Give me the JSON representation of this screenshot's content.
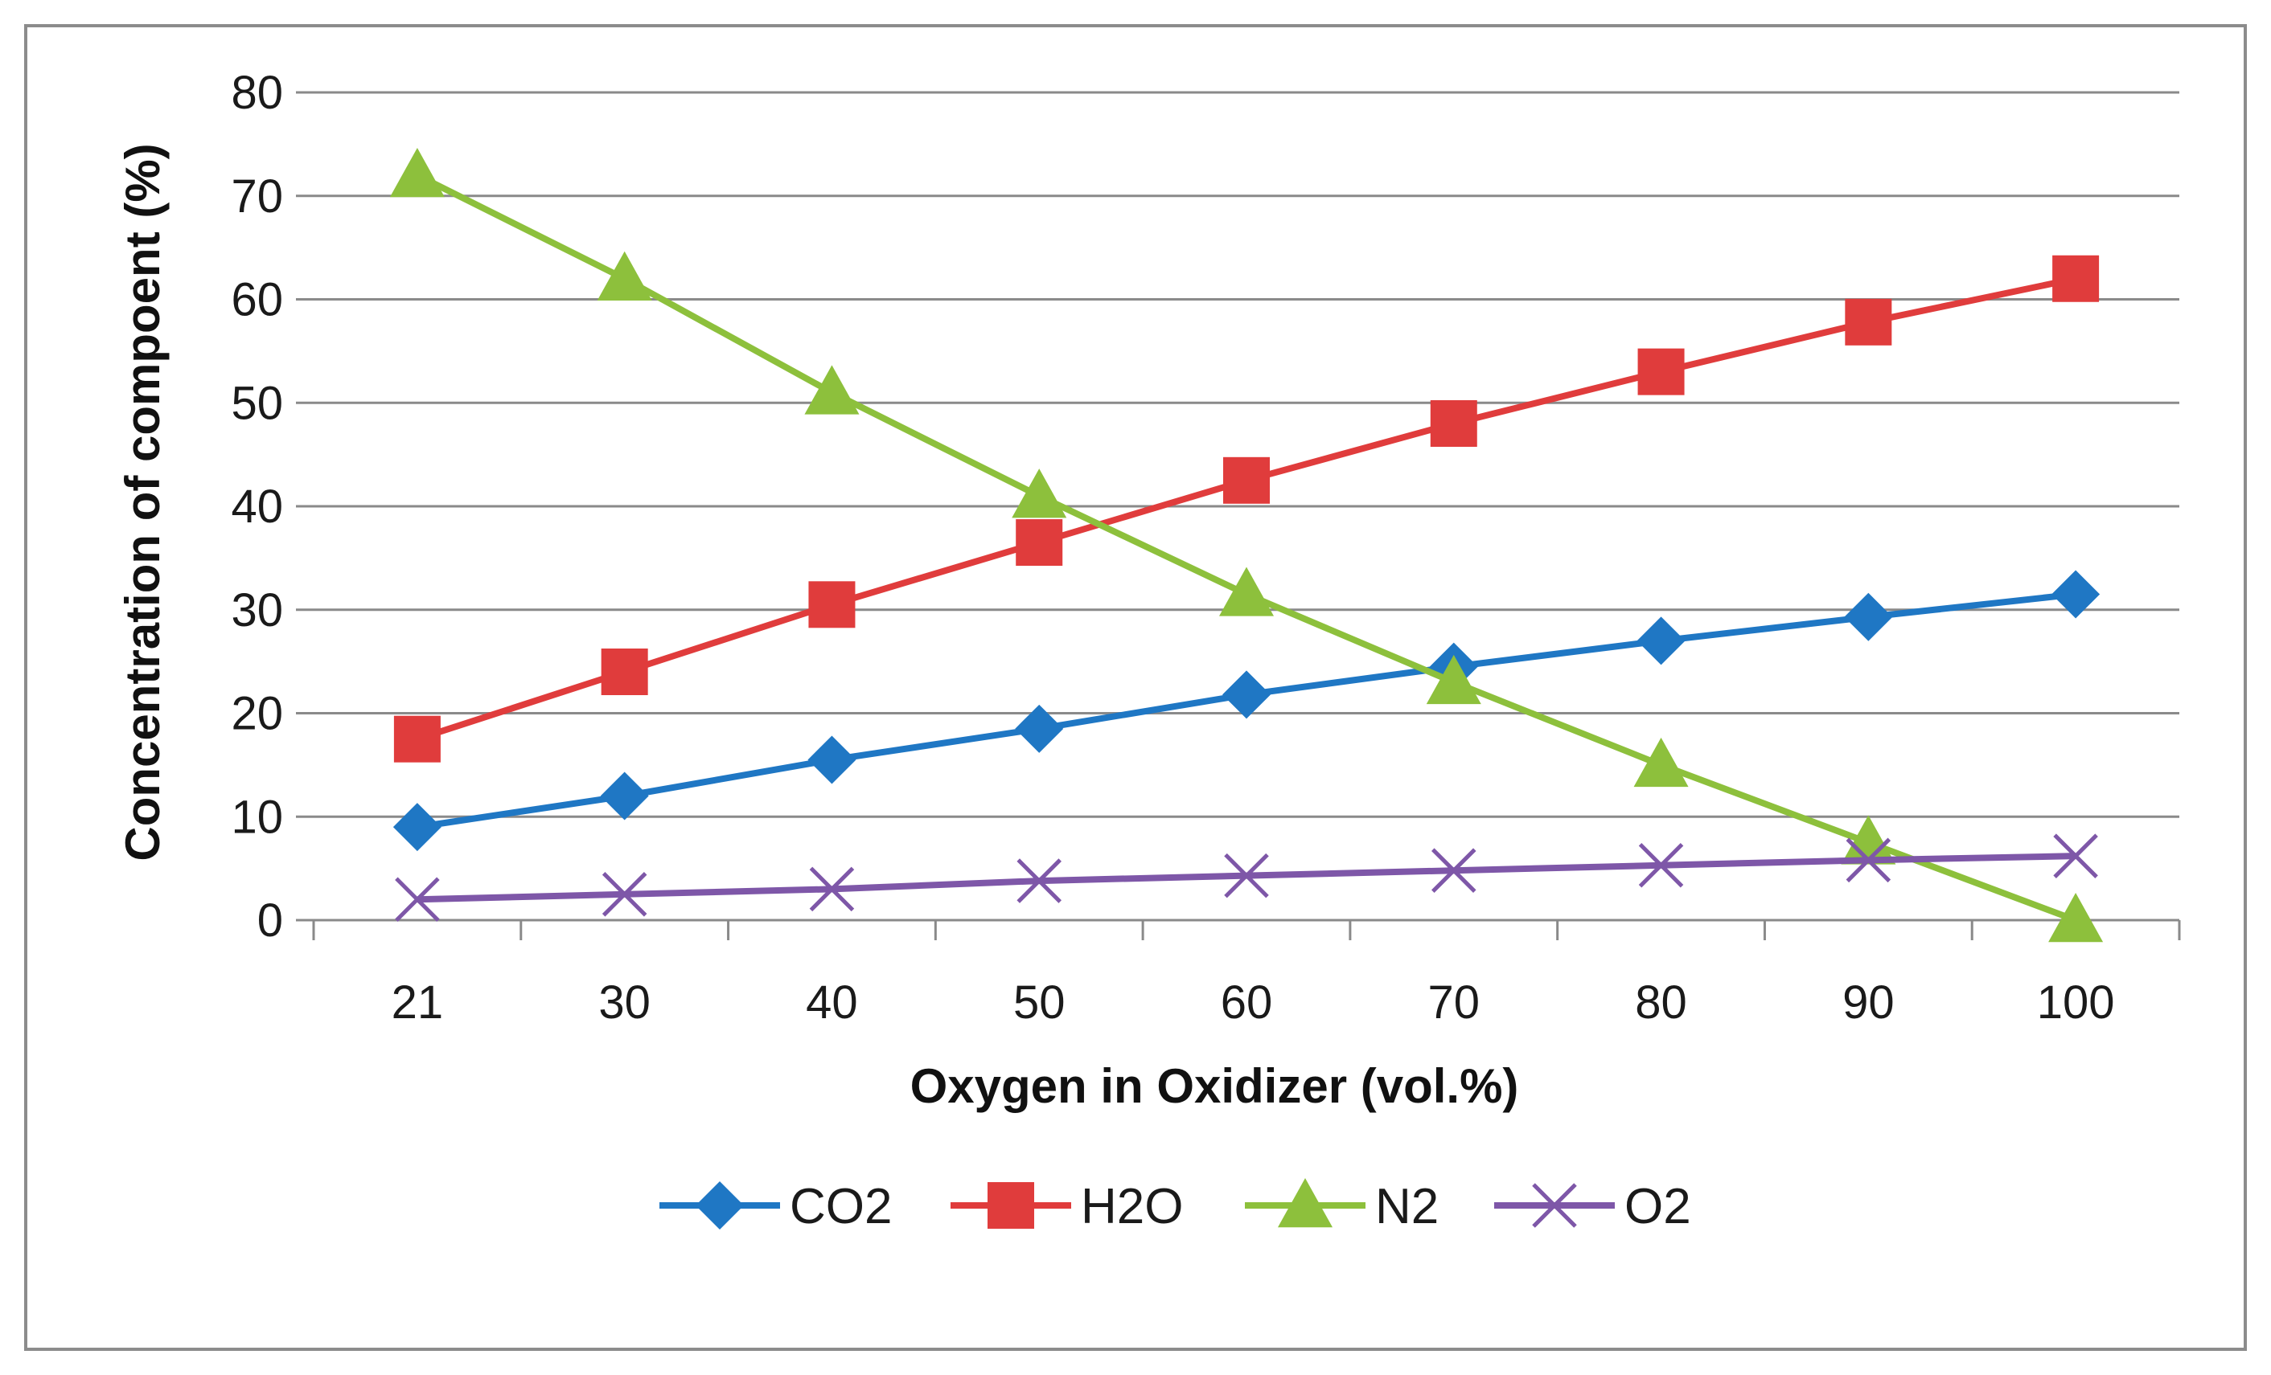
{
  "chart_data": {
    "type": "line",
    "title": "",
    "xlabel": "Oxygen  in Oxidizer (vol.%)",
    "ylabel": "Concentration of compoent (%)",
    "categories": [
      "21",
      "30",
      "40",
      "50",
      "60",
      "70",
      "80",
      "90",
      "100"
    ],
    "ylim": [
      0,
      80
    ],
    "yticks": [
      0,
      10,
      20,
      30,
      40,
      50,
      60,
      70,
      80
    ],
    "grid": "horizontal",
    "legend_position": "bottom",
    "series": [
      {
        "name": "CO2",
        "color": "#1f77c4",
        "marker": "diamond",
        "values": [
          9,
          12,
          15.5,
          18.5,
          21.8,
          24.5,
          27,
          29.3,
          31.5
        ]
      },
      {
        "name": "H2O",
        "color": "#e03c3c",
        "marker": "square",
        "values": [
          17.5,
          24,
          30.5,
          36.5,
          42.5,
          48,
          53,
          57.8,
          62
        ]
      },
      {
        "name": "N2",
        "color": "#8dc03c",
        "marker": "triangle",
        "values": [
          72,
          62,
          51,
          41,
          31.5,
          23,
          15,
          7.5,
          0
        ]
      },
      {
        "name": "O2",
        "color": "#7e57a8",
        "marker": "cross",
        "values": [
          2,
          2.5,
          3,
          3.8,
          4.3,
          4.8,
          5.3,
          5.8,
          6.2
        ]
      }
    ]
  }
}
